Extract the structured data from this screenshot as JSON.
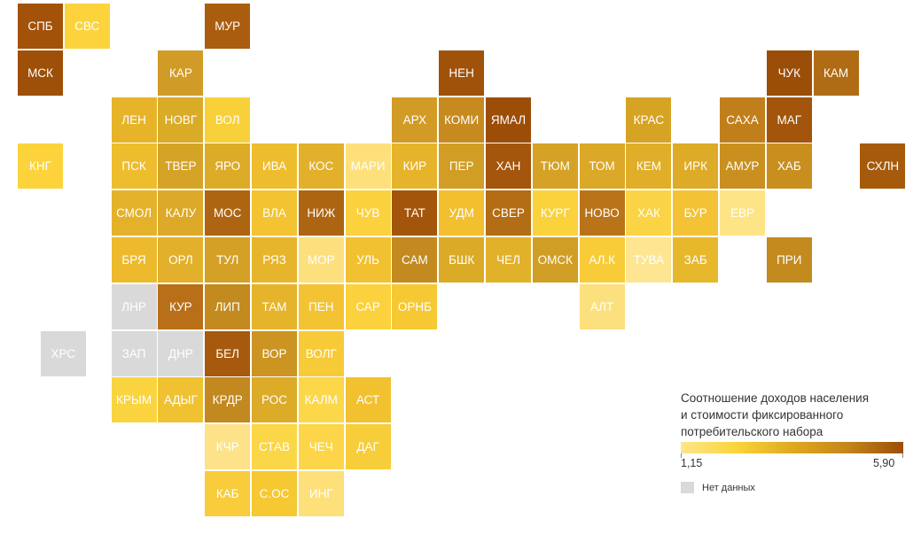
{
  "legend": {
    "title_lines": [
      "Соотношение доходов населения",
      "и стоимости фиксированного",
      "потребительского набора"
    ],
    "min_label": "1,15",
    "max_label": "5,90",
    "min_value": 1.15,
    "max_value": 5.9,
    "gradient_colors": [
      "#fde68a",
      "#fbd43a",
      "#dfa91f",
      "#c3861a",
      "#9b4e08"
    ],
    "nodata_label": "Нет данных",
    "nodata_color": "#d9d9d9"
  },
  "regions": [
    {
      "label": "СПБ",
      "col": 0,
      "row": 0,
      "color": "#a3520a"
    },
    {
      "label": "СВС",
      "col": 1,
      "row": 0,
      "color": "#fcd33c"
    },
    {
      "label": "МУР",
      "col": 4,
      "row": 0,
      "color": "#ab5d0f"
    },
    {
      "label": "МСК",
      "col": 0,
      "row": 1,
      "color": "#9e4f08"
    },
    {
      "label": "КАР",
      "col": 3,
      "row": 1,
      "color": "#d19b27"
    },
    {
      "label": "НЕН",
      "col": 9,
      "row": 1,
      "color": "#a0510a"
    },
    {
      "label": "ЧУК",
      "col": 16,
      "row": 1,
      "color": "#9b4e08"
    },
    {
      "label": "КАМ",
      "col": 17,
      "row": 1,
      "color": "#b06c14"
    },
    {
      "label": "ЛЕН",
      "col": 2,
      "row": 2,
      "color": "#e7b429"
    },
    {
      "label": "НОВГ",
      "col": 3,
      "row": 2,
      "color": "#daab26"
    },
    {
      "label": "ВОЛ",
      "col": 4,
      "row": 2,
      "color": "#f8d03a"
    },
    {
      "label": "АРХ",
      "col": 8,
      "row": 2,
      "color": "#d19b25"
    },
    {
      "label": "КОМИ",
      "col": 9,
      "row": 2,
      "color": "#c68a1e"
    },
    {
      "label": "ЯМАЛ",
      "col": 10,
      "row": 2,
      "color": "#9c4e08"
    },
    {
      "label": "КРАС",
      "col": 13,
      "row": 2,
      "color": "#d7a325"
    },
    {
      "label": "САХА",
      "col": 15,
      "row": 2,
      "color": "#c07f1b"
    },
    {
      "label": "МАГ",
      "col": 16,
      "row": 2,
      "color": "#a2550b"
    },
    {
      "label": "КНГ",
      "col": 0,
      "row": 3,
      "color": "#fcd33a"
    },
    {
      "label": "ПСК",
      "col": 2,
      "row": 3,
      "color": "#eebd2d"
    },
    {
      "label": "ТВЕР",
      "col": 3,
      "row": 3,
      "color": "#d5a326"
    },
    {
      "label": "ЯРО",
      "col": 4,
      "row": 3,
      "color": "#dcab28"
    },
    {
      "label": "ИВА",
      "col": 5,
      "row": 3,
      "color": "#eebd2e"
    },
    {
      "label": "КОС",
      "col": 6,
      "row": 3,
      "color": "#e2b02a"
    },
    {
      "label": "МАРИ",
      "col": 7,
      "row": 3,
      "color": "#fde07a"
    },
    {
      "label": "КИР",
      "col": 8,
      "row": 3,
      "color": "#e6b42a"
    },
    {
      "label": "ПЕР",
      "col": 9,
      "row": 3,
      "color": "#d19d24"
    },
    {
      "label": "ХАН",
      "col": 10,
      "row": 3,
      "color": "#a4560c"
    },
    {
      "label": "ТЮМ",
      "col": 11,
      "row": 3,
      "color": "#d5a225"
    },
    {
      "label": "ТОМ",
      "col": 12,
      "row": 3,
      "color": "#dba827"
    },
    {
      "label": "КЕМ",
      "col": 13,
      "row": 3,
      "color": "#e0ae28"
    },
    {
      "label": "ИРК",
      "col": 14,
      "row": 3,
      "color": "#ddab27"
    },
    {
      "label": "АМУР",
      "col": 15,
      "row": 3,
      "color": "#c9901f"
    },
    {
      "label": "ХАБ",
      "col": 16,
      "row": 3,
      "color": "#c88f1f"
    },
    {
      "label": "СХЛН",
      "col": 18,
      "row": 3,
      "color": "#a65b0c"
    },
    {
      "label": "СМОЛ",
      "col": 2,
      "row": 4,
      "color": "#e4b22a"
    },
    {
      "label": "КАЛУ",
      "col": 3,
      "row": 4,
      "color": "#dcaa28"
    },
    {
      "label": "МОС",
      "col": 4,
      "row": 4,
      "color": "#ae6511"
    },
    {
      "label": "ВЛА",
      "col": 5,
      "row": 4,
      "color": "#f3c331"
    },
    {
      "label": "НИЖ",
      "col": 6,
      "row": 4,
      "color": "#ad6512"
    },
    {
      "label": "ЧУВ",
      "col": 7,
      "row": 4,
      "color": "#fbd13d"
    },
    {
      "label": "ТАТ",
      "col": 8,
      "row": 4,
      "color": "#a3550b"
    },
    {
      "label": "УДМ",
      "col": 9,
      "row": 4,
      "color": "#f2c02f"
    },
    {
      "label": "СВЕР",
      "col": 10,
      "row": 4,
      "color": "#b36d15"
    },
    {
      "label": "КУРГ",
      "col": 11,
      "row": 4,
      "color": "#fad23c"
    },
    {
      "label": "НОВО",
      "col": 12,
      "row": 4,
      "color": "#b9741a"
    },
    {
      "label": "ХАК",
      "col": 13,
      "row": 4,
      "color": "#fad444"
    },
    {
      "label": "БУР",
      "col": 14,
      "row": 4,
      "color": "#f3c335"
    },
    {
      "label": "ЕВР",
      "col": 15,
      "row": 4,
      "color": "#fde487"
    },
    {
      "label": "БРЯ",
      "col": 2,
      "row": 5,
      "color": "#ecba2c"
    },
    {
      "label": "ОРЛ",
      "col": 3,
      "row": 5,
      "color": "#e2b02a"
    },
    {
      "label": "ТУЛ",
      "col": 4,
      "row": 5,
      "color": "#d4a126"
    },
    {
      "label": "РЯЗ",
      "col": 5,
      "row": 5,
      "color": "#e7b52b"
    },
    {
      "label": "МОР",
      "col": 6,
      "row": 5,
      "color": "#fde07e"
    },
    {
      "label": "УЛЬ",
      "col": 7,
      "row": 5,
      "color": "#f2c131"
    },
    {
      "label": "САМ",
      "col": 8,
      "row": 5,
      "color": "#c38a1f"
    },
    {
      "label": "БШК",
      "col": 9,
      "row": 5,
      "color": "#dbab28"
    },
    {
      "label": "ЧЕЛ",
      "col": 10,
      "row": 5,
      "color": "#e2b12a"
    },
    {
      "label": "ОМСК",
      "col": 11,
      "row": 5,
      "color": "#d19e25"
    },
    {
      "label": "АЛ.К",
      "col": 12,
      "row": 5,
      "color": "#f8cc39"
    },
    {
      "label": "ТУВА",
      "col": 13,
      "row": 5,
      "color": "#fde592"
    },
    {
      "label": "ЗАБ",
      "col": 14,
      "row": 5,
      "color": "#e8b82c"
    },
    {
      "label": "ПРИ",
      "col": 16,
      "row": 5,
      "color": "#c38a1e"
    },
    {
      "label": "ЛНР",
      "col": 2,
      "row": 6,
      "color": "#d9d9d9"
    },
    {
      "label": "КУР",
      "col": 3,
      "row": 6,
      "color": "#b86f17"
    },
    {
      "label": "ЛИП",
      "col": 4,
      "row": 6,
      "color": "#c28a1f"
    },
    {
      "label": "ТАМ",
      "col": 5,
      "row": 6,
      "color": "#e6b42a"
    },
    {
      "label": "ПЕН",
      "col": 6,
      "row": 6,
      "color": "#f3c334"
    },
    {
      "label": "САР",
      "col": 7,
      "row": 6,
      "color": "#fbd23e"
    },
    {
      "label": "ОРНБ",
      "col": 8,
      "row": 6,
      "color": "#f6c833"
    },
    {
      "label": "АЛТ",
      "col": 12,
      "row": 6,
      "color": "#fde07e"
    },
    {
      "label": "ХРС",
      "col": 1,
      "row": 7,
      "color": "#d9d9d9",
      "dx": -27
    },
    {
      "label": "ЗАП",
      "col": 2,
      "row": 7,
      "color": "#d9d9d9"
    },
    {
      "label": "ДНР",
      "col": 3,
      "row": 7,
      "color": "#d9d9d9"
    },
    {
      "label": "БЕЛ",
      "col": 4,
      "row": 7,
      "color": "#a7590d"
    },
    {
      "label": "ВОР",
      "col": 5,
      "row": 7,
      "color": "#cc9421"
    },
    {
      "label": "ВОЛГ",
      "col": 6,
      "row": 7,
      "color": "#f7cb37"
    },
    {
      "label": "КРЫМ",
      "col": 2,
      "row": 8,
      "color": "#fad43f"
    },
    {
      "label": "АДЫГ",
      "col": 3,
      "row": 8,
      "color": "#f0c232"
    },
    {
      "label": "КРДР",
      "col": 4,
      "row": 8,
      "color": "#c28920"
    },
    {
      "label": "РОС",
      "col": 5,
      "row": 8,
      "color": "#dcab28"
    },
    {
      "label": "КАЛМ",
      "col": 6,
      "row": 8,
      "color": "#fcd749"
    },
    {
      "label": "АСТ",
      "col": 7,
      "row": 8,
      "color": "#f1c130"
    },
    {
      "label": "КЧР",
      "col": 4,
      "row": 9,
      "color": "#fde289"
    },
    {
      "label": "СТАВ",
      "col": 5,
      "row": 9,
      "color": "#fbd647"
    },
    {
      "label": "ЧЕЧ",
      "col": 6,
      "row": 9,
      "color": "#fcd648"
    },
    {
      "label": "ДАГ",
      "col": 7,
      "row": 9,
      "color": "#f7cd3a"
    },
    {
      "label": "КАБ",
      "col": 4,
      "row": 10,
      "color": "#f8cc3a"
    },
    {
      "label": "С.ОС",
      "col": 5,
      "row": 10,
      "color": "#f6c832"
    },
    {
      "label": "ИНГ",
      "col": 6,
      "row": 10,
      "color": "#fde07a"
    }
  ]
}
